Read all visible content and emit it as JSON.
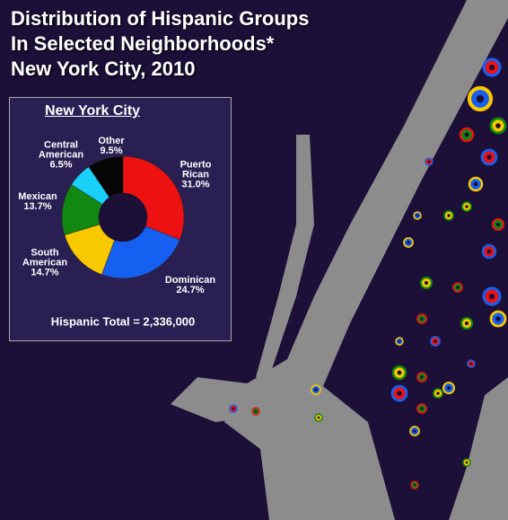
{
  "title_lines": [
    "Distribution of Hispanic Groups",
    "In Selected Neighborhoods*",
    "New York City, 2010"
  ],
  "chart_data": {
    "type": "donut",
    "title": "New York City",
    "categories": [
      "Puerto Rican",
      "Dominican",
      "South American",
      "Mexican",
      "Central American",
      "Other"
    ],
    "values": [
      31.0,
      24.7,
      14.7,
      13.7,
      6.5,
      9.5
    ],
    "value_labels": [
      "31.0%",
      "24.7%",
      "14.7%",
      "13.7%",
      "6.5%",
      "9.5%"
    ],
    "colors": [
      "#ee1111",
      "#1560f0",
      "#f8c800",
      "#118811",
      "#18d0f8",
      "#050505"
    ],
    "total_label": "Hispanic Total = 2,336,000"
  }
}
